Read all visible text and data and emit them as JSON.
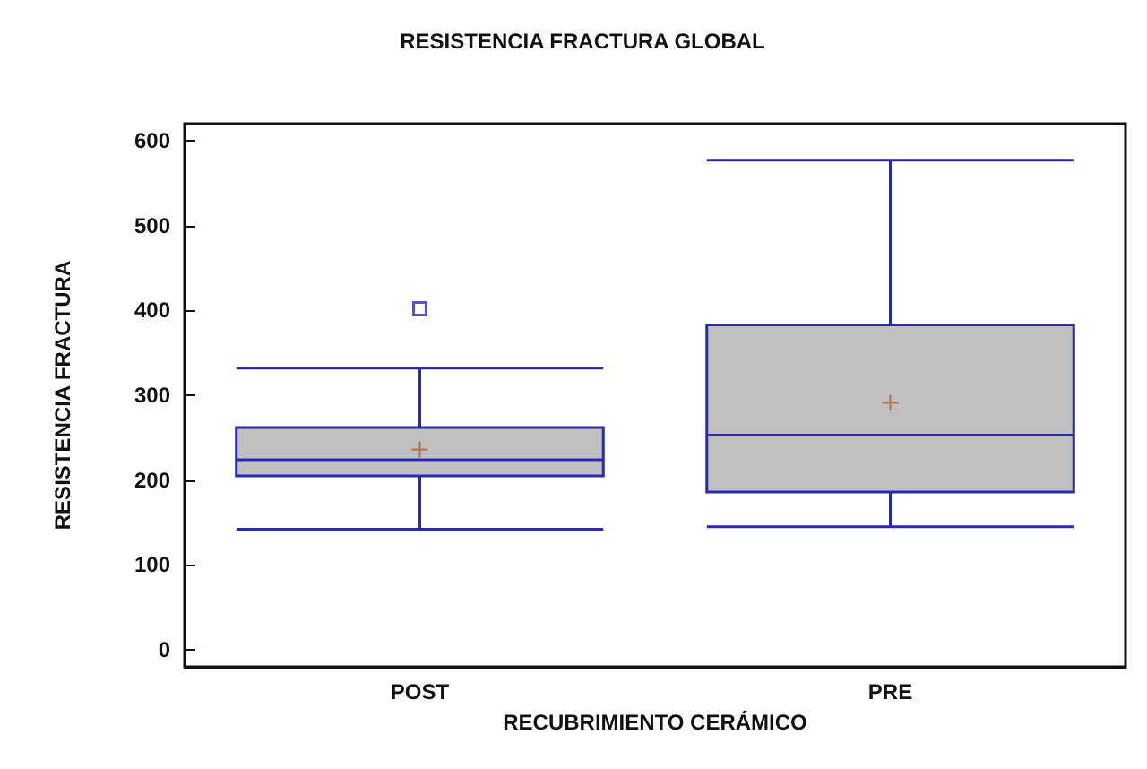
{
  "chart_data": {
    "type": "box",
    "title": "RESISTENCIA FRACTURA GLOBAL",
    "xlabel": "RECUBRIMIENTO CERÁMICO",
    "ylabel": "RESISTENCIA FRACTURA",
    "categories": [
      "POST",
      "PRE"
    ],
    "series": [
      {
        "color": "#c0c0c0",
        "boxes": [
          {
            "low": 142,
            "q1": 205,
            "median": 224,
            "q3": 262,
            "high": 332,
            "mean": 236,
            "outliers": [
              402
            ]
          },
          {
            "low": 145,
            "q1": 186,
            "median": 253,
            "q3": 383,
            "high": 577,
            "mean": 291
          }
        ]
      }
    ],
    "ylim": [
      -20,
      620
    ],
    "yticks": [
      0,
      100,
      200,
      300,
      400,
      500,
      600
    ]
  }
}
